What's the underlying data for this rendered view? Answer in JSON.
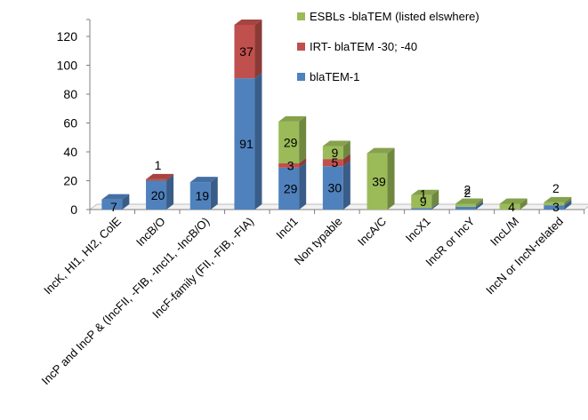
{
  "chart_data": {
    "type": "bar",
    "stacked": true,
    "three_d": true,
    "categories": [
      "IncK, HI1, HI2, ColE",
      "IncB/O",
      "IncP and IncP & (IncFII, -FIB, -IncI1, -IncB/O)",
      "IncF-family (FII, -FIB, -FIA)",
      "IncI1",
      "Non typable",
      "IncA/C",
      "IncX1",
      "IncR or IncY",
      "IncL/M",
      "IncN or IncN-related"
    ],
    "series": [
      {
        "name": "blaTEM-1",
        "color": "#4F81BD",
        "values": [
          7,
          20,
          19,
          91,
          29,
          30,
          0,
          1,
          2,
          0,
          3
        ],
        "labels": [
          "7",
          "20",
          "19",
          "91",
          "29",
          "30",
          "",
          "1",
          "2",
          "",
          "3"
        ]
      },
      {
        "name": "IRT- blaTEM -30; -40",
        "color": "#C0504D",
        "values": [
          0,
          1,
          0,
          37,
          3,
          5,
          0,
          0,
          0,
          0,
          0
        ],
        "labels": [
          "",
          "1",
          "",
          "37",
          "3",
          "5",
          "",
          "",
          "",
          "",
          ""
        ]
      },
      {
        "name": "ESBLs -blaTEM  (listed elswhere)",
        "color": "#9BBB59",
        "values": [
          0,
          0,
          0,
          0,
          29,
          9,
          39,
          9,
          2,
          4,
          2
        ],
        "labels": [
          "",
          "",
          "",
          "",
          "29",
          "9",
          "39",
          "9",
          "2",
          "4",
          "2"
        ]
      }
    ],
    "ylim": [
      0,
      130
    ],
    "yticks": [
      "0",
      "20",
      "40",
      "60",
      "80",
      "100",
      "120"
    ],
    "grid": false,
    "legend": {
      "position": "top-right"
    }
  }
}
